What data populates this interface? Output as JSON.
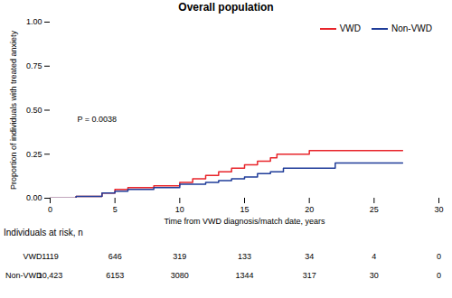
{
  "chart_data": {
    "type": "line",
    "title": "Overall population",
    "x_label": "Time from VWD diagnosis/match date, years",
    "y_label": "Proportion of individuals with treated anxiety",
    "xlim": [
      0,
      30
    ],
    "xticks": [
      0,
      5,
      10,
      15,
      20,
      25,
      30
    ],
    "ylim": [
      0,
      1
    ],
    "yticks": [
      {
        "value": 0,
        "label": "0.00"
      },
      {
        "value": 0.25,
        "label": "0.25"
      },
      {
        "value": 0.5,
        "label": "0.50"
      },
      {
        "value": 0.75,
        "label": "0.75"
      },
      {
        "value": 1,
        "label": "1.00"
      }
    ],
    "grid": false,
    "legend": "top-right",
    "line_style": "step",
    "series": [
      {
        "name": "VWD",
        "color": "#e8252b",
        "x": [
          0,
          2,
          4,
          5,
          6,
          8,
          10,
          11,
          12,
          13,
          14,
          15,
          16,
          17,
          17.5,
          20,
          27.2
        ],
        "values": [
          0,
          0.01,
          0.03,
          0.05,
          0.06,
          0.07,
          0.09,
          0.11,
          0.13,
          0.15,
          0.17,
          0.19,
          0.21,
          0.23,
          0.25,
          0.27,
          0.27
        ]
      },
      {
        "name": "Non-VWD",
        "color": "#1f3c99",
        "x": [
          0,
          2,
          4,
          5,
          6,
          8,
          10,
          12,
          13,
          14,
          15,
          16,
          17,
          18,
          22,
          27.2
        ],
        "values": [
          0,
          0.01,
          0.03,
          0.04,
          0.05,
          0.06,
          0.08,
          0.09,
          0.1,
          0.11,
          0.12,
          0.14,
          0.15,
          0.17,
          0.2,
          0.2
        ]
      }
    ],
    "annotations": [
      {
        "text": "P = 0.0038"
      }
    ],
    "risk_table": {
      "title": "Individuals at risk, n",
      "x": [
        0,
        5,
        10,
        15,
        20,
        25,
        30
      ],
      "rows": [
        {
          "name": "VWD",
          "values": [
            1119,
            646,
            319,
            133,
            34,
            4,
            0
          ]
        },
        {
          "name": "Non-VWD",
          "values": [
            10423,
            6153,
            3080,
            1344,
            317,
            30,
            0
          ],
          "value_labels": [
            "10,423",
            "6153",
            "3080",
            "1344",
            "317",
            "30",
            "0"
          ]
        }
      ]
    }
  }
}
